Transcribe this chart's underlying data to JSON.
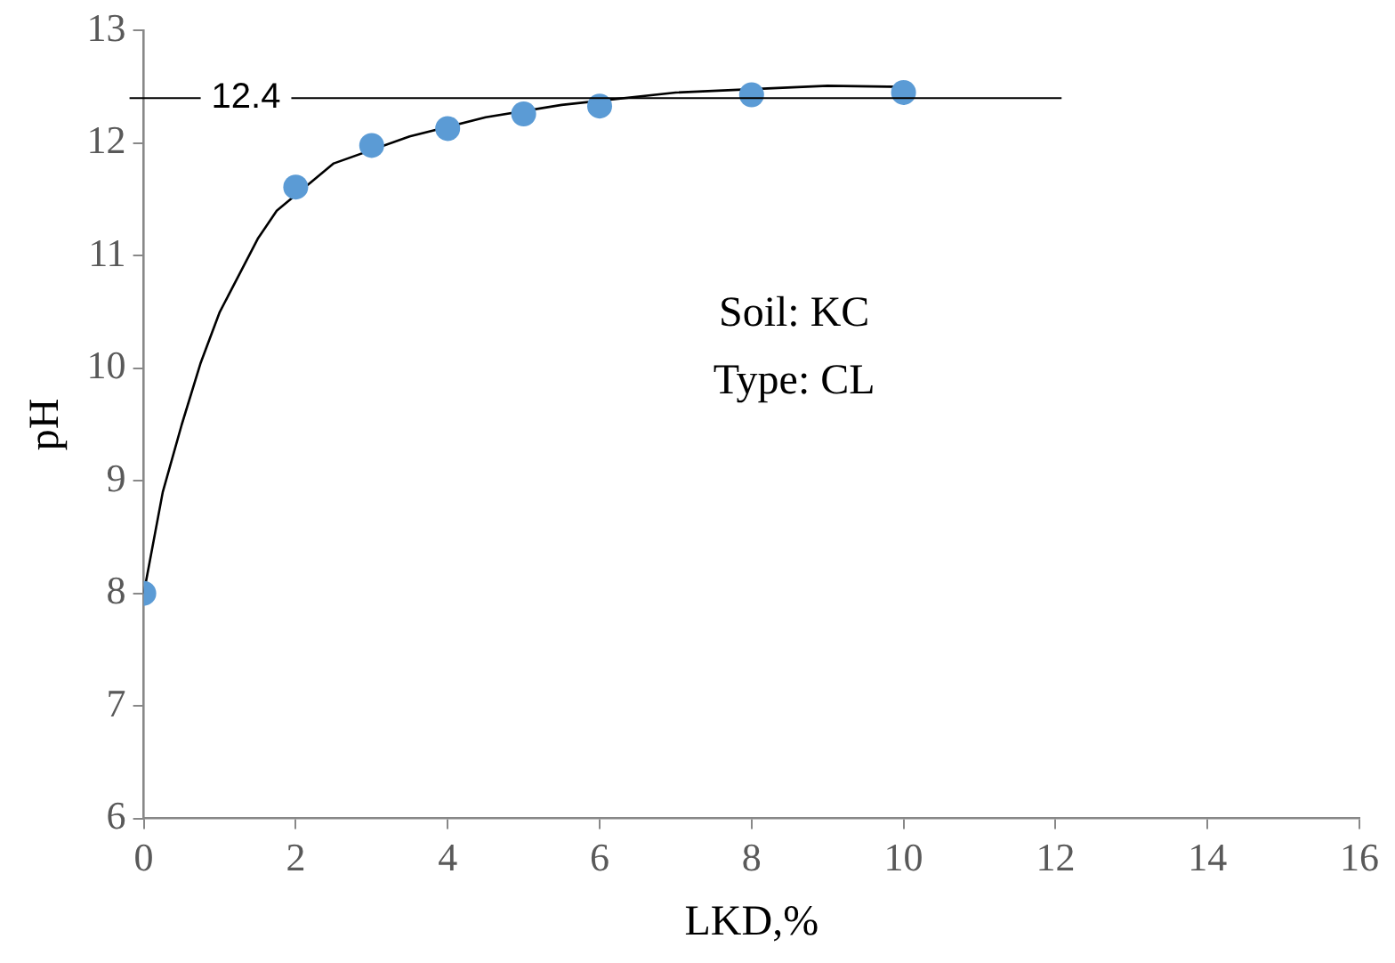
{
  "chart_data": {
    "type": "scatter",
    "xlabel": "LKD,%",
    "ylabel": "pH",
    "xlim": [
      0,
      16
    ],
    "xticks": [
      0,
      2,
      4,
      6,
      8,
      10,
      12,
      14,
      16
    ],
    "ylim": [
      6,
      13
    ],
    "yticks": [
      6,
      7,
      8,
      9,
      10,
      11,
      12,
      13
    ],
    "grid": false,
    "legend": false,
    "series": [
      {
        "type": "scatter",
        "color": "#5b9bd5",
        "marker": "circle",
        "x": [
          0,
          2,
          3,
          4,
          5,
          6,
          8,
          10
        ],
        "values": [
          8.0,
          11.61,
          11.98,
          12.13,
          12.26,
          12.33,
          12.43,
          12.45
        ]
      },
      {
        "type": "line",
        "color": "#000000",
        "marker": "none",
        "line_style": "solid",
        "x": [
          0,
          0.25,
          0.5,
          0.75,
          1,
          1.5,
          1.75,
          2.5,
          3.5,
          4.5,
          5.5,
          7,
          9,
          10
        ],
        "values": [
          8.0,
          8.9,
          9.5,
          10.05,
          10.5,
          11.15,
          11.4,
          11.82,
          12.06,
          12.23,
          12.34,
          12.45,
          12.51,
          12.5
        ]
      }
    ],
    "ref_lines": [
      {
        "axis": "y",
        "value": 12.4,
        "label": "12.4",
        "color": "#000000"
      }
    ],
    "annotations": [
      "Soil: KC",
      "Type: CL"
    ]
  }
}
